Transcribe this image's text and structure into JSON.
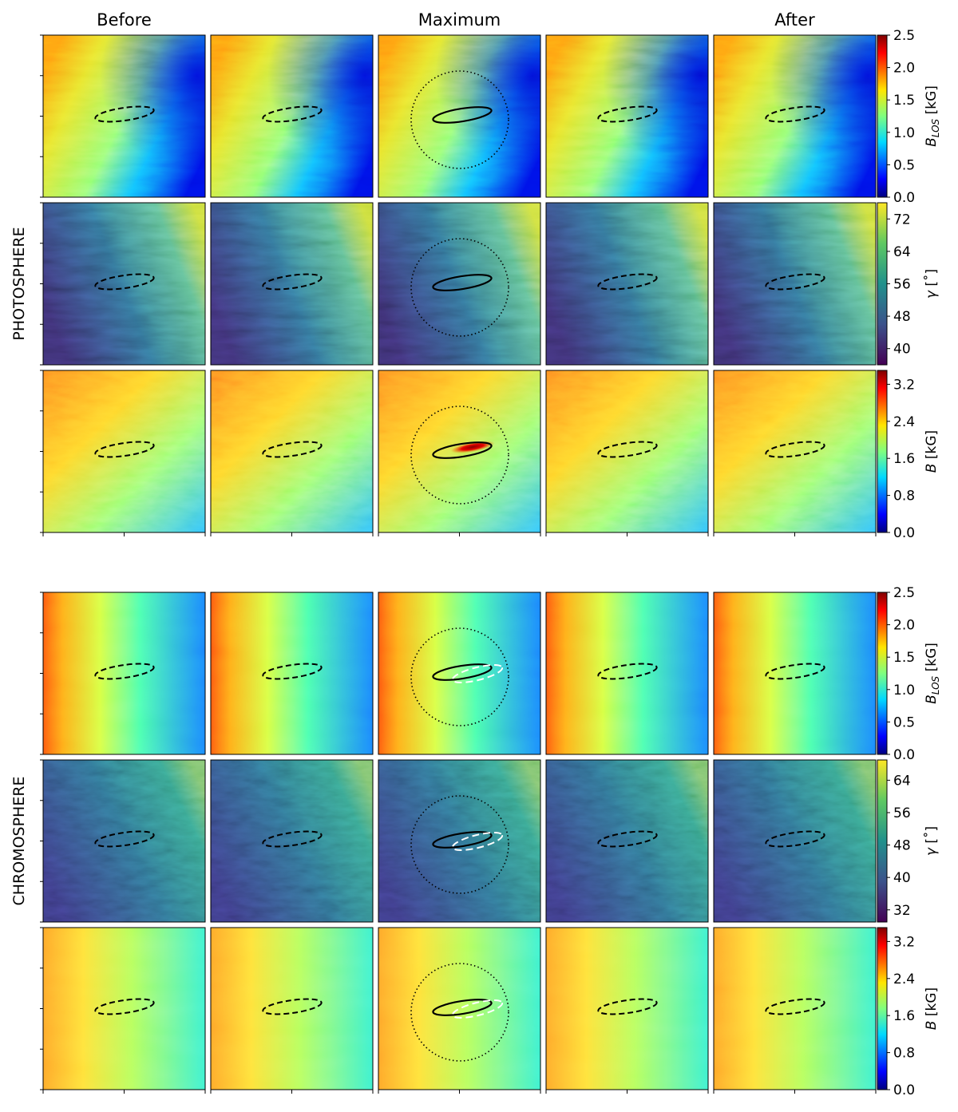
{
  "column_titles": [
    "Before",
    "",
    "Maximum",
    "",
    "After"
  ],
  "section_labels": [
    "PHOTOSPHERE",
    "CHROMOSPHERE"
  ],
  "colors": {
    "jet": [
      "#00007f",
      "#0000ff",
      "#007fff",
      "#00ffff",
      "#7fff7f",
      "#ffff00",
      "#ff7f00",
      "#ff0000",
      "#7f0000"
    ],
    "viridis": [
      "#440154",
      "#3b528b",
      "#21918c",
      "#5ec962",
      "#fde725"
    ]
  },
  "chart_data": [
    {
      "type": "heatmap",
      "layer": "PHOTOSPHERE",
      "quantity": "B_LOS",
      "colorbar": {
        "label_main": "B",
        "label_sub": "LOS",
        "label_unit": "[kG]",
        "colormap": "jet",
        "range": [
          0.0,
          2.5
        ],
        "ticks": [
          0.0,
          0.5,
          1.0,
          1.5,
          2.0,
          2.5
        ],
        "tick_labels": [
          "0.0",
          "0.5",
          "1.0",
          "1.5",
          "2.0",
          "2.5"
        ]
      }
    },
    {
      "type": "heatmap",
      "layer": "PHOTOSPHERE",
      "quantity": "gamma",
      "colorbar": {
        "label_main": "γ",
        "label_sub": "",
        "label_unit": "[˚]",
        "colormap": "viridis",
        "range": [
          36,
          76
        ],
        "ticks": [
          40,
          48,
          56,
          64,
          72
        ],
        "tick_labels": [
          "40",
          "48",
          "56",
          "64",
          "72"
        ]
      }
    },
    {
      "type": "heatmap",
      "layer": "PHOTOSPHERE",
      "quantity": "B",
      "colorbar": {
        "label_main": "B",
        "label_sub": "",
        "label_unit": "[kG]",
        "colormap": "jet",
        "range": [
          0.0,
          3.5
        ],
        "ticks": [
          0.0,
          0.8,
          1.6,
          2.4,
          3.2
        ],
        "tick_labels": [
          "0.0",
          "0.8",
          "1.6",
          "2.4",
          "3.2"
        ]
      }
    },
    {
      "type": "heatmap",
      "layer": "CHROMOSPHERE",
      "quantity": "B_LOS",
      "colorbar": {
        "label_main": "B",
        "label_sub": "LOS",
        "label_unit": "[kG]",
        "colormap": "jet",
        "range": [
          0.0,
          2.5
        ],
        "ticks": [
          0.0,
          0.5,
          1.0,
          1.5,
          2.0,
          2.5
        ],
        "tick_labels": [
          "0.0",
          "0.5",
          "1.0",
          "1.5",
          "2.0",
          "2.5"
        ]
      }
    },
    {
      "type": "heatmap",
      "layer": "CHROMOSPHERE",
      "quantity": "gamma",
      "colorbar": {
        "label_main": "γ",
        "label_sub": "",
        "label_unit": "[˚]",
        "colormap": "viridis",
        "range": [
          29,
          69
        ],
        "ticks": [
          32,
          40,
          48,
          56,
          64
        ],
        "tick_labels": [
          "32",
          "40",
          "48",
          "56",
          "64"
        ]
      }
    },
    {
      "type": "heatmap",
      "layer": "CHROMOSPHERE",
      "quantity": "B",
      "colorbar": {
        "label_main": "B",
        "label_sub": "",
        "label_unit": "[kG]",
        "colormap": "jet",
        "range": [
          0.0,
          3.5
        ],
        "ticks": [
          0.0,
          0.8,
          1.6,
          2.4,
          3.2
        ],
        "tick_labels": [
          "0.0",
          "0.8",
          "1.6",
          "2.4",
          "3.2"
        ]
      }
    }
  ]
}
